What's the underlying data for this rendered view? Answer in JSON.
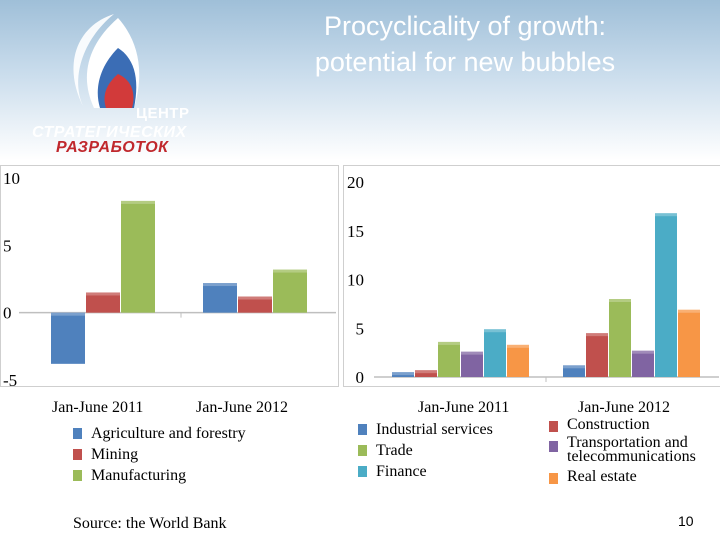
{
  "slide": {
    "title_line1": "Procyclicality of growth:",
    "title_line2": "potential for new bubbles",
    "logo_text_1": "ЦЕНТР",
    "logo_text_2": "СТРАТЕГИЧЕСКИХ",
    "logo_text_3": "РАЗРАБОТОК",
    "source": "Source: the World Bank",
    "page_number": "10"
  },
  "chart_data": [
    {
      "type": "bar",
      "categories": [
        "Jan-June 2011",
        "Jan-June 2012"
      ],
      "series": [
        {
          "name": "Agriculture and forestry",
          "color": "#4f81bd",
          "values": [
            -3.8,
            2.2
          ]
        },
        {
          "name": "Mining",
          "color": "#c0504d",
          "values": [
            1.5,
            1.2
          ]
        },
        {
          "name": "Manufacturing",
          "color": "#9bbb59",
          "values": [
            8.3,
            3.2
          ]
        }
      ],
      "ylim": [
        -5,
        10
      ],
      "yticks": [
        "-5",
        "0",
        "5",
        "10"
      ],
      "grid": false,
      "legend": "bottom"
    },
    {
      "type": "bar",
      "categories": [
        "Jan-June 2011",
        "Jan-June 2012"
      ],
      "series": [
        {
          "name": "Industrial services",
          "color": "#4f81bd",
          "values": [
            0.5,
            1.2
          ]
        },
        {
          "name": "Construction",
          "color": "#c0504d",
          "values": [
            0.7,
            4.5
          ]
        },
        {
          "name": "Trade",
          "color": "#9bbb59",
          "values": [
            3.6,
            8.0
          ]
        },
        {
          "name": "Transportation and telecommunications",
          "color": "#8064a2",
          "values": [
            2.6,
            2.7
          ]
        },
        {
          "name": "Finance",
          "color": "#4bacc6",
          "values": [
            4.9,
            16.8
          ]
        },
        {
          "name": "Real estate",
          "color": "#f79646",
          "values": [
            3.3,
            6.9
          ]
        }
      ],
      "ylim": [
        0,
        20
      ],
      "yticks": [
        "0",
        "5",
        "10",
        "15",
        "20"
      ],
      "grid": false,
      "legend": "bottom"
    }
  ]
}
